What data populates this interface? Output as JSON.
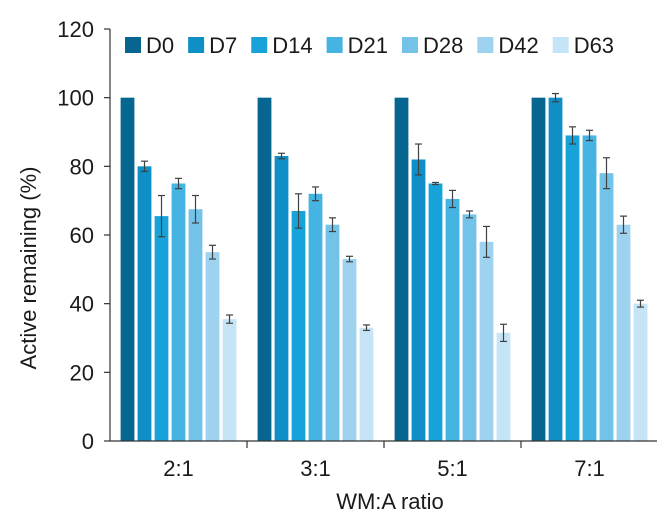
{
  "chart_data": {
    "type": "bar",
    "title": "",
    "xlabel": "WM:A ratio",
    "ylabel": "Active remaining (%)",
    "ylim": [
      0,
      120
    ],
    "yticks": [
      0,
      20,
      40,
      60,
      80,
      100,
      120
    ],
    "categories": [
      "2:1",
      "3:1",
      "5:1",
      "7:1"
    ],
    "legend_position": "top",
    "series": [
      {
        "name": "D0",
        "color": "#06668f",
        "values": [
          100,
          100,
          100,
          100
        ],
        "errors": [
          0,
          0,
          0,
          0
        ]
      },
      {
        "name": "D7",
        "color": "#0f8fc6",
        "values": [
          80,
          83,
          82,
          100
        ],
        "errors": [
          1.5,
          0.8,
          4.5,
          1.2
        ]
      },
      {
        "name": "D14",
        "color": "#17a3d9",
        "values": [
          65.5,
          67,
          75,
          89
        ],
        "errors": [
          6,
          5,
          0.3,
          2.5
        ]
      },
      {
        "name": "D21",
        "color": "#45b4e2",
        "values": [
          75,
          72,
          70.5,
          89
        ],
        "errors": [
          1.5,
          2,
          2.5,
          1.5
        ]
      },
      {
        "name": "D28",
        "color": "#73c3e8",
        "values": [
          67.5,
          63,
          66,
          78
        ],
        "errors": [
          4,
          2,
          1,
          4.5
        ]
      },
      {
        "name": "D42",
        "color": "#9dd3ef",
        "values": [
          55,
          53,
          58,
          63
        ],
        "errors": [
          2,
          0.8,
          4.5,
          2.5
        ]
      },
      {
        "name": "D63",
        "color": "#c5e5f6",
        "values": [
          35.5,
          33,
          31.5,
          40
        ],
        "errors": [
          1.2,
          0.8,
          2.5,
          1
        ]
      }
    ]
  }
}
